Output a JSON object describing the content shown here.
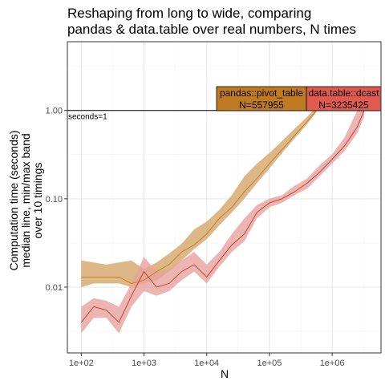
{
  "chart_data": {
    "type": "line",
    "title_lines": [
      "Reshaping from long to wide, comparing",
      "pandas & data.table over real numbers, N times"
    ],
    "xlabel": "N",
    "ylabel_lines": [
      "Computation time (seconds)",
      "median line, min/max band",
      "over 10 timings"
    ],
    "x_scale": "log",
    "y_scale": "log",
    "xlim": [
      60,
      6000000
    ],
    "ylim": [
      0.0018,
      6
    ],
    "x_ticks": [
      100,
      1000,
      10000,
      100000,
      1000000
    ],
    "x_tick_labels": [
      "1e+02",
      "1e+03",
      "1e+04",
      "1e+05",
      "1e+06"
    ],
    "y_ticks": [
      0.01,
      0.1,
      1
    ],
    "y_tick_labels": [
      "0.01",
      "0.10",
      "1.00"
    ],
    "grid": true,
    "reference_line": {
      "y": 1,
      "label": "seconds=1"
    },
    "series": [
      {
        "name": "pandas::pivot_table",
        "color": "#c07a22",
        "band_color": "#d4a566",
        "x": [
          100,
          158,
          251,
          398,
          631,
          1000,
          1585,
          2512,
          3981,
          6310,
          10000,
          15850,
          25120,
          39810,
          63100,
          100000,
          158500,
          251200,
          398100,
          557955
        ],
        "median": [
          0.013,
          0.013,
          0.013,
          0.013,
          0.011,
          0.012,
          0.015,
          0.018,
          0.025,
          0.03,
          0.04,
          0.06,
          0.08,
          0.12,
          0.17,
          0.25,
          0.36,
          0.52,
          0.75,
          1.0
        ],
        "min": [
          0.01,
          0.011,
          0.011,
          0.011,
          0.01,
          0.011,
          0.012,
          0.015,
          0.02,
          0.027,
          0.035,
          0.05,
          0.07,
          0.1,
          0.15,
          0.22,
          0.33,
          0.48,
          0.7,
          0.95
        ],
        "max": [
          0.02,
          0.019,
          0.018,
          0.019,
          0.02,
          0.016,
          0.019,
          0.024,
          0.031,
          0.045,
          0.055,
          0.075,
          0.11,
          0.18,
          0.25,
          0.33,
          0.45,
          0.62,
          0.85,
          1.08
        ],
        "label_lines": [
          "pandas::pivot_table",
          "N=557955"
        ]
      },
      {
        "name": "data.table::dcast",
        "color": "#c0392b",
        "band_color": "#e8a29d",
        "x": [
          100,
          158,
          251,
          398,
          631,
          1000,
          1585,
          2512,
          3981,
          6310,
          10000,
          15850,
          25120,
          39810,
          63100,
          100000,
          158500,
          251200,
          398100,
          631000,
          1000000,
          1585000,
          2512000,
          3235425
        ],
        "median": [
          0.004,
          0.006,
          0.0055,
          0.004,
          0.008,
          0.015,
          0.01,
          0.011,
          0.015,
          0.018,
          0.013,
          0.02,
          0.03,
          0.04,
          0.07,
          0.09,
          0.1,
          0.12,
          0.15,
          0.2,
          0.28,
          0.4,
          0.65,
          1.0
        ],
        "min": [
          0.003,
          0.0045,
          0.0045,
          0.003,
          0.006,
          0.009,
          0.008,
          0.009,
          0.012,
          0.015,
          0.011,
          0.017,
          0.025,
          0.033,
          0.06,
          0.08,
          0.09,
          0.11,
          0.13,
          0.18,
          0.25,
          0.35,
          0.55,
          0.85
        ],
        "max": [
          0.006,
          0.0075,
          0.007,
          0.006,
          0.011,
          0.022,
          0.015,
          0.016,
          0.02,
          0.025,
          0.018,
          0.025,
          0.04,
          0.06,
          0.085,
          0.1,
          0.11,
          0.14,
          0.17,
          0.24,
          0.32,
          0.5,
          1.0,
          1.6
        ],
        "label_lines": [
          "data.table::dcast",
          "N=3235425"
        ]
      }
    ]
  }
}
